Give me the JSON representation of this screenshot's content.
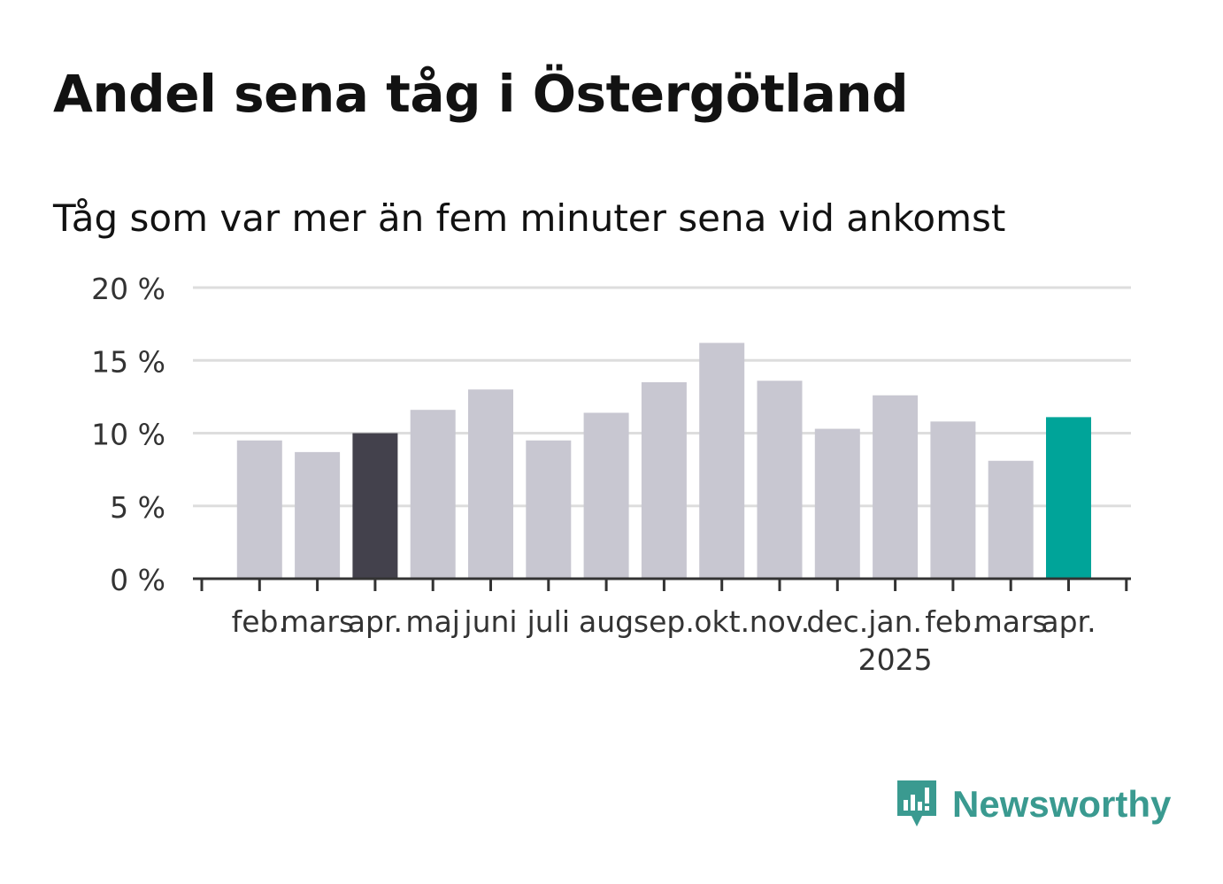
{
  "title": "Andel sena tåg i Östergötland",
  "subtitle": "Tåg som var mer än fem minuter sena vid ankomst",
  "brand": {
    "name": "Newsworthy",
    "icon": "newsworthy-logo-icon",
    "color": "#3a9a90"
  },
  "colors": {
    "default_bar": "#c8c7d1",
    "highlight_prev_year": "#43414c",
    "highlight_current": "#00a499",
    "grid": "#dddddd",
    "axis": "#333333"
  },
  "chart_data": {
    "type": "bar",
    "categories": [
      "feb.",
      "mars",
      "apr.",
      "maj",
      "juni",
      "juli",
      "aug",
      "sep.",
      "okt.",
      "nov.",
      "dec.",
      "jan.",
      "feb.",
      "mars",
      "apr."
    ],
    "year_labels": [
      {
        "index": 11,
        "label": "2025"
      }
    ],
    "values": [
      9.5,
      8.7,
      10.0,
      11.6,
      13.0,
      9.5,
      11.4,
      13.5,
      16.2,
      13.6,
      10.3,
      12.6,
      10.8,
      8.1,
      11.1
    ],
    "highlights": {
      "2": "highlight_prev_year",
      "14": "highlight_current"
    },
    "ylim": [
      0,
      20
    ],
    "yticks": [
      0,
      5,
      10,
      15,
      20
    ],
    "ytick_labels": [
      "0 %",
      "5 %",
      "10 %",
      "15 %",
      "20 %"
    ],
    "xlabel": "",
    "ylabel": "",
    "grid": true,
    "legend": "none"
  }
}
